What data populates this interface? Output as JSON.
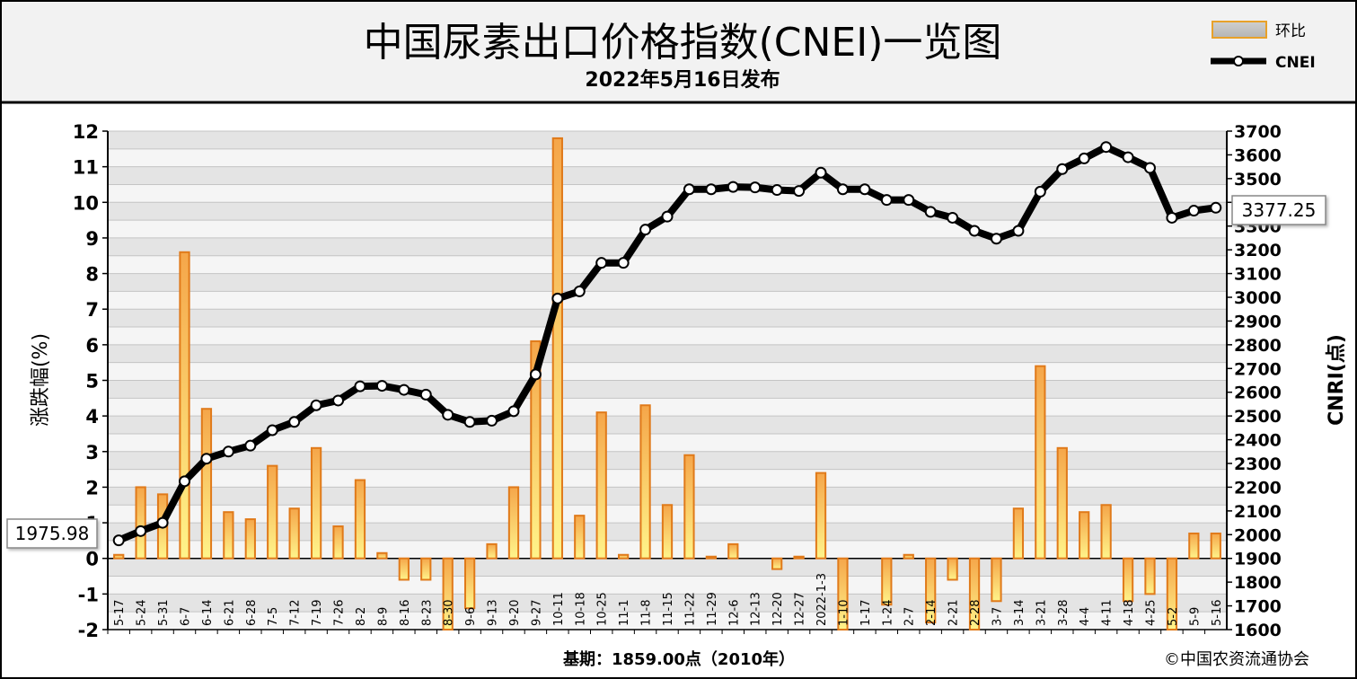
{
  "chart_data": {
    "type": "bar+line",
    "title": "中国尿素出口价格指数(CNEI)一览图",
    "subtitle": "2022年5月16日发布",
    "ylabel_left": "涨跌幅(%)",
    "ylabel_right": "CNRI(点)",
    "footer_base": "基期：1859.00点（2010年）",
    "footer_copyright": "©中国农资流通协会",
    "legend": {
      "bar": "环比",
      "line": "CNEI"
    },
    "ylim_left": [
      -2,
      12
    ],
    "ylim_right": [
      1600,
      3700
    ],
    "yticks_left": [
      "12",
      "11",
      "10",
      "9",
      "8",
      "7",
      "6",
      "5",
      "4",
      "3",
      "2",
      "1",
      "0",
      "-1",
      "-2"
    ],
    "yticks_right": [
      "3700",
      "3600",
      "3500",
      "3400",
      "3300",
      "3200",
      "3100",
      "3000",
      "2900",
      "2800",
      "2700",
      "2600",
      "2500",
      "2400",
      "2300",
      "2200",
      "2100",
      "2000",
      "1900",
      "1800",
      "1700",
      "1600"
    ],
    "categories": [
      "5-17",
      "5-24",
      "5-31",
      "6-7",
      "6-14",
      "6-21",
      "6-28",
      "7-5",
      "7-12",
      "7-19",
      "7-26",
      "8-2",
      "8-9",
      "8-16",
      "8-23",
      "8-30",
      "9-6",
      "9-13",
      "9-20",
      "9-27",
      "10-11",
      "10-18",
      "10-25",
      "11-1",
      "11-8",
      "11-15",
      "11-22",
      "11-29",
      "12-6",
      "12-13",
      "12-20",
      "12-27",
      "2022-1-3",
      "1-10",
      "1-17",
      "1-24",
      "2-7",
      "2-14",
      "2-21",
      "2-28",
      "3-7",
      "3-14",
      "3-21",
      "3-28",
      "4-4",
      "4-11",
      "4-18",
      "4-25",
      "5-2",
      "5-9",
      "5-16"
    ],
    "series": [
      {
        "name": "环比",
        "kind": "bar",
        "values": [
          0.1,
          2.0,
          1.8,
          8.6,
          4.2,
          1.3,
          1.1,
          2.6,
          1.4,
          3.1,
          0.9,
          2.2,
          0.15,
          -0.6,
          -0.6,
          -2.0,
          -1.4,
          0.4,
          2.0,
          6.1,
          11.8,
          1.2,
          4.1,
          0.1,
          4.3,
          1.5,
          2.9,
          0.05,
          0.4,
          0.0,
          -0.3,
          0.05,
          2.4,
          -2.0,
          0.0,
          -1.3,
          0.1,
          -1.8,
          -0.6,
          -2.0,
          -1.2,
          1.4,
          5.4,
          3.1,
          1.3,
          1.5,
          -1.2,
          -1.0,
          -2.0,
          0.7,
          0.7
        ]
      },
      {
        "name": "CNEI",
        "kind": "line",
        "values": [
          1975.98,
          2015,
          2050,
          2225,
          2320,
          2350,
          2375,
          2440,
          2475,
          2545,
          2565,
          2625,
          2627,
          2610,
          2590,
          2505,
          2475,
          2480,
          2520,
          2675,
          2995,
          3025,
          3145,
          3145,
          3285,
          3340,
          3455,
          3455,
          3465,
          3463,
          3452,
          3448,
          3525,
          3455,
          3455,
          3410,
          3410,
          3360,
          3335,
          3280,
          3247,
          3280,
          3445,
          3540,
          3585,
          3633,
          3590,
          3545,
          3335,
          3365,
          3377.25
        ]
      }
    ],
    "first_value_label": "1975.98",
    "last_value_label": "3377.25",
    "grid": true,
    "legend_position": "top-right"
  },
  "colors": {
    "bar_stroke": "#e07a1a",
    "bar_fill_top": "#f5a64a",
    "bar_fill_bottom": "#fff48a",
    "line": "#000000",
    "band_dark": "#e4e4e4",
    "band_light": "#f5f5f5"
  }
}
